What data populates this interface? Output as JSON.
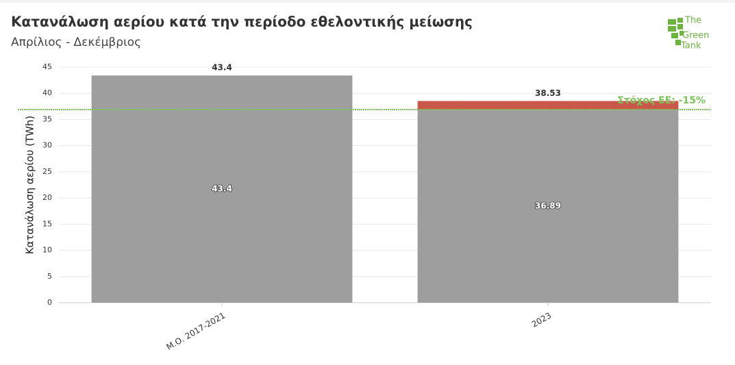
{
  "logo": [
    "The",
    "Green",
    "Tank"
  ],
  "chart_data": {
    "type": "bar",
    "stacked": true,
    "title": "Κατανάλωση αερίου κατά την περίοδο εθελοντικής μείωσης",
    "subtitle": "Απρίλιος - Δεκέμβριος",
    "ylabel": "Κατανάλωση αερίου (TWh)",
    "categories": [
      "Μ.Ο. 2017-2021",
      "2023"
    ],
    "series": [
      {
        "color": "#9e9e9e",
        "values": [
          43.4,
          36.89
        ],
        "show_labels": true
      },
      {
        "color": "#c9584a",
        "values": [
          null,
          1.64
        ],
        "show_labels": false
      }
    ],
    "totals": [
      43.4,
      38.53
    ],
    "target": {
      "value": 36.89,
      "label": "Στόχος ΕΕ: -15%",
      "color": "#7cc35a"
    },
    "ylim": [
      0,
      45
    ],
    "yticks": [
      0,
      5,
      10,
      15,
      20,
      25,
      30,
      35,
      40,
      45
    ],
    "grid": true
  }
}
